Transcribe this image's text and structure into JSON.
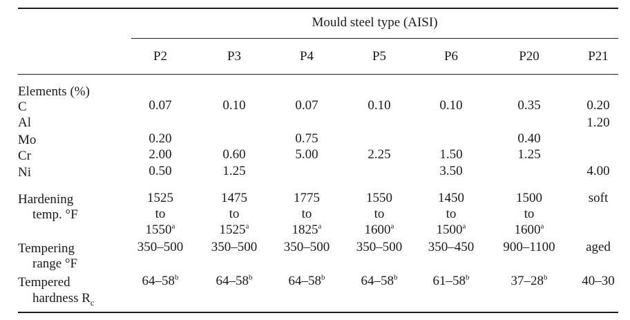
{
  "caption": "Mould steel type (AISI)",
  "columns": [
    "P2",
    "P3",
    "P4",
    "P5",
    "P6",
    "P20",
    "P21"
  ],
  "section_label": "Elements (%)",
  "elements": [
    {
      "name": "C",
      "values": [
        "0.07",
        "0.10",
        "0.07",
        "0.10",
        "0.10",
        "0.35",
        "0.20"
      ]
    },
    {
      "name": "Al",
      "values": [
        "",
        "",
        "",
        "",
        "",
        "",
        "1.20"
      ]
    },
    {
      "name": "Mo",
      "values": [
        "0.20",
        "",
        "0.75",
        "",
        "",
        "0.40",
        ""
      ]
    },
    {
      "name": "Cr",
      "values": [
        "2.00",
        "0.60",
        "5.00",
        "2.25",
        "1.50",
        "1.25",
        ""
      ]
    },
    {
      "name": "Ni",
      "values": [
        "0.50",
        "1.25",
        "",
        "",
        "3.50",
        "",
        "4.00"
      ]
    }
  ],
  "hardening": {
    "label_line1": "Hardening",
    "label_line2": "temp. °F",
    "from": [
      "1525",
      "1475",
      "1775",
      "1550",
      "1450",
      "1500"
    ],
    "to_word": "to",
    "to": [
      "1550",
      "1525",
      "1825",
      "1600",
      "1500",
      "1600"
    ],
    "to_mark": "a",
    "p21": "soft"
  },
  "tempering": {
    "label_line1": "Tempering",
    "label_line2": "range °F",
    "values": [
      "350–500",
      "350–500",
      "350–500",
      "350–500",
      "350–450",
      "900–1100",
      "aged"
    ]
  },
  "hardness": {
    "label_line1": "Tempered",
    "label_line2_text": "hardness R",
    "label_sub": "c",
    "values": [
      "64–58",
      "64–58",
      "64–58",
      "64–58",
      "61–58",
      "37–28",
      "40–30"
    ],
    "mark": "b"
  }
}
